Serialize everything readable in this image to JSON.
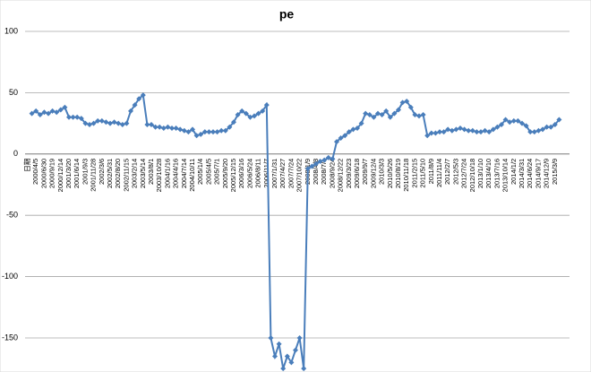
{
  "chart_data": {
    "type": "line",
    "title": "pe",
    "categories": [
      "日期",
      null,
      "2000/4/5",
      null,
      "2000/6/30",
      null,
      "2000/9/19",
      null,
      "2000/12/14",
      null,
      "2001/3/20",
      null,
      "2001/6/14",
      null,
      "2001/9/3",
      null,
      "2001/11/28",
      null,
      "2002/3/6",
      null,
      "2002/5/31",
      null,
      "2002/8/20",
      null,
      "2002/11/15",
      null,
      "2003/2/14",
      null,
      "2003/5/14",
      null,
      "2003/8/1",
      null,
      "2003/10/28",
      null,
      "2004/1/16",
      null,
      "2004/4/16",
      null,
      "2004/7/14",
      null,
      "2004/10/11",
      null,
      "2005/1/4",
      null,
      "2005/4/5",
      null,
      "2005/7/1",
      null,
      "2005/9/20",
      null,
      "2005/12/15",
      null,
      "2006/3/16",
      null,
      "2006/5/24",
      null,
      "2006/8/11",
      null,
      "2006/11/7",
      null,
      "2007/1/31",
      null,
      "2007/4/27",
      null,
      "2007/7/24",
      null,
      "2007/10/22",
      null,
      "2008/1/9",
      null,
      "2008/4/8",
      null,
      "2008/7/1",
      null,
      "2008/9/24",
      null,
      "2008/12/22",
      null,
      "2009/3/23",
      null,
      "2009/6/18",
      null,
      "2009/9/7",
      null,
      "2009/12/4",
      null,
      "2010/3/3",
      null,
      "2010/5/26",
      null,
      "2010/8/19",
      null,
      "2010/11/18",
      null,
      "2011/2/15",
      null,
      "2011/5/10",
      null,
      "2011/8/9",
      null,
      "2011/11/4",
      null,
      "2012/2/7",
      null,
      "2012/5/3",
      null,
      "2012/7/24",
      null,
      "2012/10/18",
      null,
      "2013/1/10",
      null,
      "2013/4/10",
      null,
      "2013/7/16",
      null,
      "2013/10/14",
      null,
      "2014/1/2",
      null,
      "2014/3/31",
      null,
      "2014/6/24",
      null,
      "2014/9/17",
      null,
      "2014/12/9",
      null,
      "2015/3/9",
      null
    ],
    "series": [
      {
        "color": "#4a7ebb",
        "values": [
          null,
          33,
          35,
          32,
          34,
          33,
          35,
          34,
          36,
          38,
          30,
          30,
          30,
          29,
          25,
          24,
          25,
          27,
          27,
          26,
          25,
          26,
          25,
          24,
          25,
          35,
          40,
          45,
          48,
          24,
          24,
          22,
          22,
          21,
          22,
          21,
          21,
          20,
          19,
          18,
          20,
          15,
          16,
          18,
          18,
          18,
          18,
          19,
          19,
          22,
          26,
          32,
          35,
          33,
          30,
          31,
          33,
          35,
          40,
          -150,
          -165,
          -155,
          -175,
          -165,
          -170,
          -160,
          -150,
          -175,
          -12,
          -10,
          -8,
          -6,
          -5,
          -3,
          -4,
          10,
          13,
          15,
          18,
          20,
          21,
          25,
          33,
          32,
          30,
          33,
          32,
          35,
          30,
          33,
          36,
          42,
          43,
          38,
          32,
          31,
          32,
          15,
          17,
          17,
          18,
          18,
          20,
          19,
          20,
          21,
          20,
          19,
          19,
          18,
          18,
          19,
          18,
          20,
          22,
          24,
          28,
          26,
          27,
          27,
          25,
          23,
          18,
          18,
          19,
          20,
          22,
          22,
          24,
          28
        ]
      }
    ],
    "ylim": [
      -180,
      100
    ],
    "yticks": [
      -150,
      -100,
      -50,
      0,
      50,
      100
    ],
    "grid": true
  }
}
